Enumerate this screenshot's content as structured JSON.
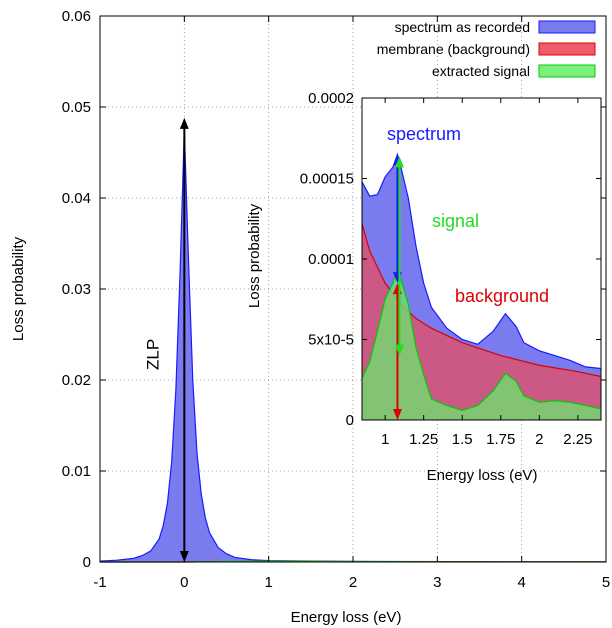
{
  "chart_data": [
    {
      "type": "area",
      "xlabel": "Energy loss (eV)",
      "ylabel": "Loss probability",
      "xlim": [
        -1,
        5
      ],
      "ylim": [
        0,
        0.06
      ],
      "x_ticks": [
        -1,
        0,
        1,
        2,
        3,
        4,
        5
      ],
      "x_tick_labels": [
        "-1",
        "0",
        "1",
        "2",
        "3",
        "4",
        "5"
      ],
      "y_ticks": [
        0,
        0.01,
        0.02,
        0.03,
        0.04,
        0.05,
        0.06
      ],
      "y_tick_labels": [
        "0",
        "0.01",
        "0.02",
        "0.03",
        "0.04",
        "0.05",
        "0.06"
      ],
      "grid": "dotted",
      "legend_position": "top-right",
      "legend": [
        {
          "label": "spectrum as recorded",
          "fill": "#7b7bf0",
          "stroke": "#1a1aff"
        },
        {
          "label": "membrane (background)",
          "fill": "#ef5b6b",
          "stroke": "#dd0000"
        },
        {
          "label": "extracted signal",
          "fill": "#7cf07c",
          "stroke": "#00cc00"
        }
      ],
      "series": [
        {
          "name": "spectrum as recorded",
          "x": [
            -1.0,
            -0.8,
            -0.6,
            -0.5,
            -0.4,
            -0.3,
            -0.25,
            -0.2,
            -0.15,
            -0.1,
            -0.05,
            0.0,
            0.05,
            0.1,
            0.15,
            0.2,
            0.25,
            0.3,
            0.4,
            0.5,
            0.6,
            0.8,
            1.0,
            1.5,
            2.0,
            3.0,
            4.0,
            5.0
          ],
          "y": [
            0.0001,
            0.0002,
            0.0004,
            0.0007,
            0.0012,
            0.0025,
            0.004,
            0.0065,
            0.011,
            0.019,
            0.032,
            0.0475,
            0.033,
            0.02,
            0.012,
            0.0075,
            0.0048,
            0.0032,
            0.0016,
            0.0009,
            0.0005,
            0.00025,
            0.00016,
            0.0001,
            7e-05,
            4e-05,
            3e-05,
            2e-05
          ]
        },
        {
          "name": "membrane (background)",
          "x": [
            -1.0,
            0.0,
            1.0,
            2.0,
            3.0,
            4.0,
            5.0
          ],
          "y": [
            0.0,
            0.0,
            8e-05,
            4e-05,
            3e-05,
            2e-05,
            2e-05
          ]
        },
        {
          "name": "extracted signal",
          "x": [
            -1.0,
            0.0,
            1.0,
            2.0,
            3.0,
            4.0,
            5.0
          ],
          "y": [
            0.0,
            0.0,
            8e-05,
            3e-05,
            2e-05,
            1e-05,
            1e-05
          ]
        }
      ],
      "annotations": [
        {
          "text": "ZLP",
          "type": "double-arrow",
          "x": 0,
          "y_from": 0,
          "y_to": 0.0488,
          "color": "#000000"
        }
      ]
    },
    {
      "type": "area",
      "position": "inset",
      "xlabel": "Energy loss (eV)",
      "ylabel": "Loss probability",
      "xlim": [
        0.85,
        2.4
      ],
      "ylim": [
        0,
        0.0002
      ],
      "x_ticks": [
        1.0,
        1.25,
        1.5,
        1.75,
        2.0,
        2.25
      ],
      "x_tick_labels": [
        "1",
        "1.25",
        "1.5",
        "1.75",
        "2",
        "2.25"
      ],
      "y_ticks": [
        0,
        5e-05,
        0.0001,
        0.00015,
        0.0002
      ],
      "y_tick_labels": [
        "0",
        "5x10-5",
        "0.0001",
        "0.00015",
        "0.0002"
      ],
      "series": [
        {
          "name": "spectrum as recorded",
          "x": [
            0.85,
            0.9,
            0.95,
            1.0,
            1.05,
            1.08,
            1.1,
            1.15,
            1.2,
            1.25,
            1.3,
            1.4,
            1.5,
            1.6,
            1.7,
            1.78,
            1.85,
            1.9,
            2.0,
            2.1,
            2.2,
            2.3,
            2.4
          ],
          "y": [
            0.000148,
            0.000139,
            0.00014,
            0.000151,
            0.000157,
            0.000165,
            0.000158,
            0.000138,
            0.000108,
            8.5e-05,
            7e-05,
            5.7e-05,
            5e-05,
            4.7e-05,
            5.5e-05,
            6.6e-05,
            5.8e-05,
            4.8e-05,
            4.3e-05,
            4e-05,
            3.7e-05,
            3.3e-05,
            3.2e-05
          ]
        },
        {
          "name": "membrane (background)",
          "x": [
            0.85,
            0.9,
            1.0,
            1.1,
            1.2,
            1.3,
            1.5,
            1.75,
            2.0,
            2.25,
            2.4
          ],
          "y": [
            0.000122,
            0.000105,
            8.5e-05,
            7.2e-05,
            6.3e-05,
            5.7e-05,
            4.8e-05,
            4e-05,
            3.4e-05,
            3e-05,
            2.7e-05
          ]
        },
        {
          "name": "extracted signal",
          "x": [
            0.85,
            0.9,
            0.95,
            1.0,
            1.05,
            1.08,
            1.1,
            1.15,
            1.2,
            1.25,
            1.3,
            1.4,
            1.5,
            1.6,
            1.7,
            1.78,
            1.85,
            1.9,
            2.0,
            2.1,
            2.2,
            2.3,
            2.4
          ],
          "y": [
            2.6e-05,
            3.6e-05,
            5.5e-05,
            7.5e-05,
            8.5e-05,
            9.5e-05,
            8.8e-05,
            7.2e-05,
            4.5e-05,
            2.8e-05,
            1.3e-05,
            9e-06,
            6e-06,
            9e-06,
            1.8e-05,
            2.9e-05,
            2.4e-05,
            1.5e-05,
            1.1e-05,
            1.2e-05,
            1.1e-05,
            9e-06,
            7e-06
          ]
        }
      ],
      "annotations": [
        {
          "text": "spectrum",
          "color": "#1a1aff",
          "type": "double-arrow",
          "x": 1.08,
          "y_from": 8.5e-05,
          "y_to": 0.000165
        },
        {
          "text": "signal",
          "color": "#22dd22",
          "type": "double-arrow",
          "x": 1.08,
          "y_from": 4e-05,
          "y_to": 0.000165
        },
        {
          "text": "background",
          "color": "#dd0000",
          "type": "double-arrow",
          "x": 1.08,
          "y_from": 0.0,
          "y_to": 8.5e-05
        }
      ]
    }
  ]
}
